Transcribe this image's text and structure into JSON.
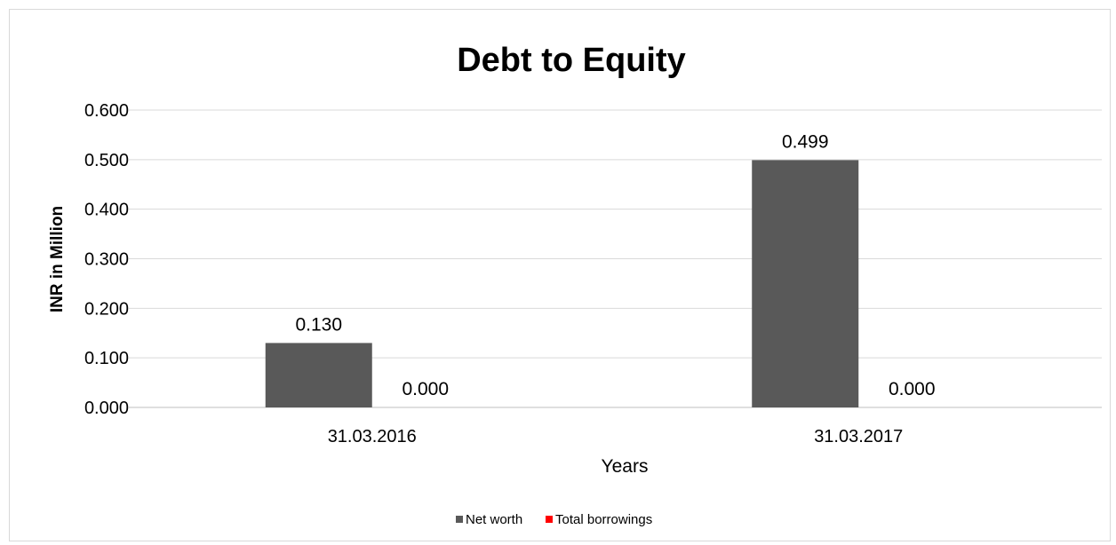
{
  "chart_data": {
    "type": "bar",
    "title": "Debt to Equity",
    "xlabel": "Years",
    "ylabel": "INR in Million",
    "categories": [
      "31.03.2016",
      "31.03.2017"
    ],
    "series": [
      {
        "name": "Net worth",
        "values": [
          0.13,
          0.499
        ],
        "labels": [
          "0.130",
          "0.499"
        ],
        "color": "#595959"
      },
      {
        "name": "Total borrowings",
        "values": [
          0.0,
          0.0
        ],
        "labels": [
          "0.000",
          "0.000"
        ],
        "color": "#ff0000"
      }
    ],
    "ylim": [
      0,
      0.6
    ],
    "yticks": [
      0,
      0.1,
      0.2,
      0.3,
      0.4,
      0.5,
      0.6
    ],
    "ytick_labels": [
      "0.000",
      "0.100",
      "0.200",
      "0.300",
      "0.400",
      "0.500",
      "0.600"
    ],
    "grid": true,
    "legend_position": "bottom"
  }
}
